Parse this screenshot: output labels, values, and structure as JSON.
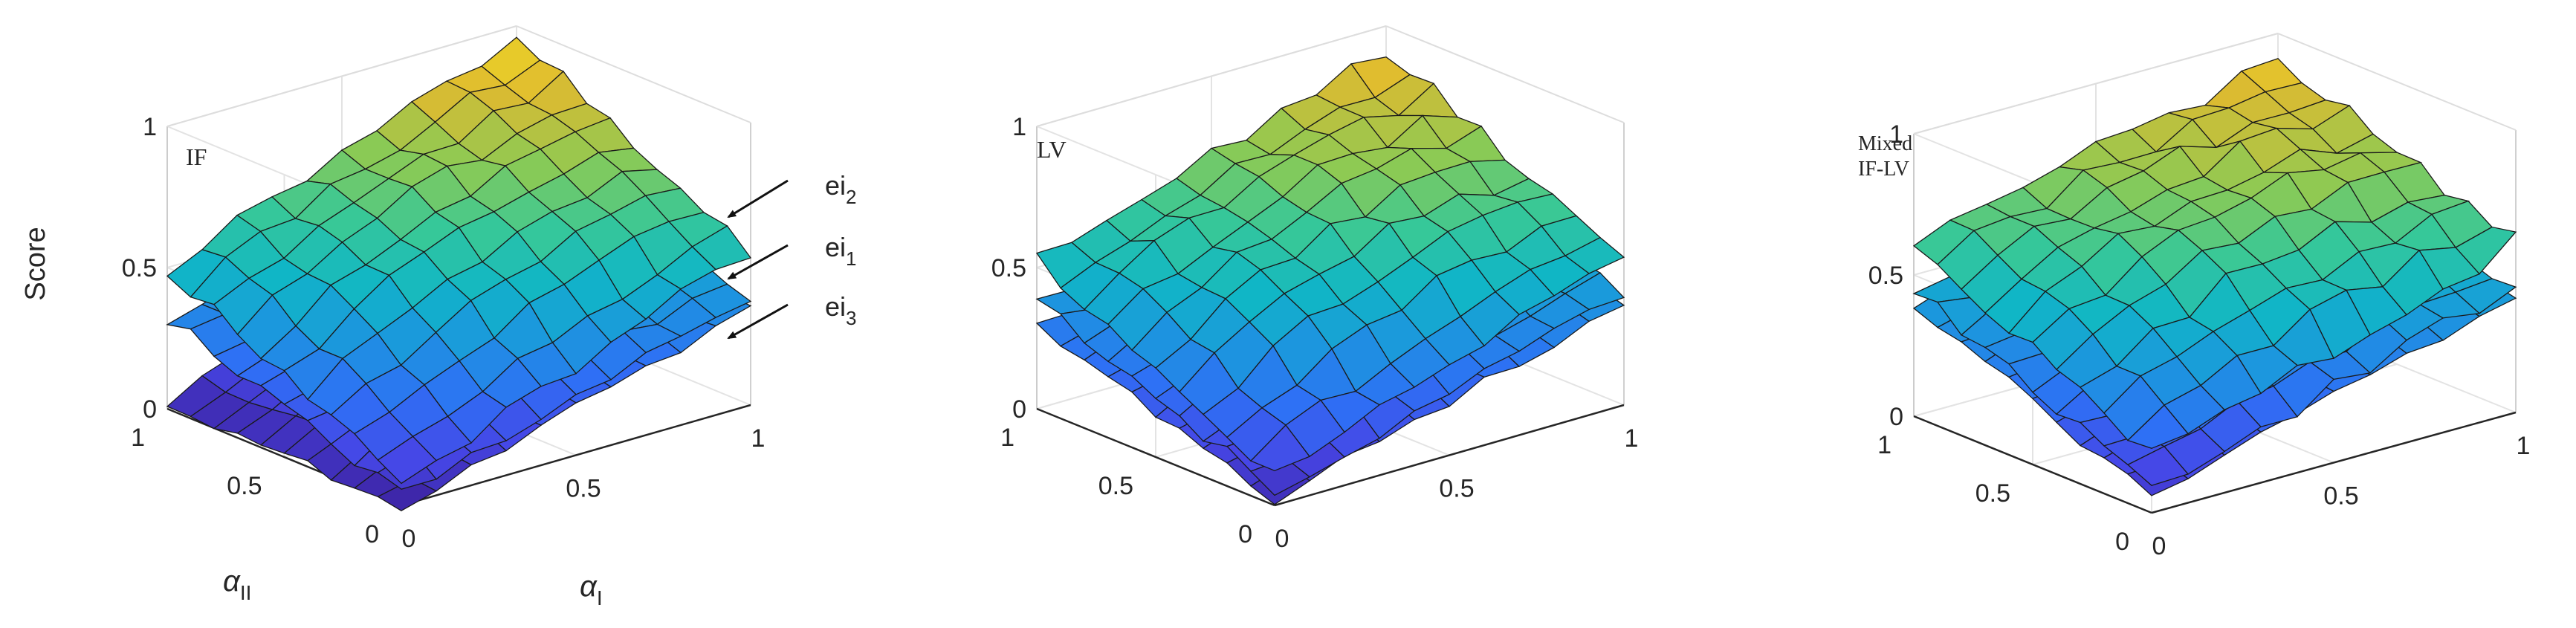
{
  "chart_data": [
    {
      "type": "surface",
      "label": "IF",
      "zlabel": "Score",
      "xlabel": "α",
      "xlabel_sub": "I",
      "ylabel": "α",
      "ylabel_sub": "II",
      "x_ticks": [
        "0",
        "0.5",
        "1"
      ],
      "y_ticks": [
        "0",
        "0.5",
        "1"
      ],
      "z_ticks": [
        "0",
        "0.5",
        "1"
      ],
      "zlim": [
        0,
        1
      ],
      "grid": "on",
      "surfaces": [
        {
          "name": "ei",
          "sub": "2",
          "corners": {
            "origin": 0.08,
            "x1": 0.55,
            "y1": 0.5,
            "far": 0.96
          },
          "peak": 0.1,
          "ripple": 0.03,
          "seed": 1
        },
        {
          "name": "ei",
          "sub": "1",
          "corners": {
            "origin": 0.04,
            "x1": 0.38,
            "y1": 0.32,
            "far": 0.55
          },
          "peak": 0.06,
          "ripple": 0.025,
          "seed": 2
        },
        {
          "name": "ei",
          "sub": "3",
          "corners": {
            "origin": 0.0,
            "x1": 0.34,
            "y1": 0.02,
            "far": 0.48
          },
          "peak": 0.04,
          "ripple": 0.02,
          "seed": 3
        }
      ],
      "annotations": [
        {
          "text": "ei",
          "sub": "2",
          "points_to": "ei2"
        },
        {
          "text": "ei",
          "sub": "1",
          "points_to": "ei1"
        },
        {
          "text": "ei",
          "sub": "3",
          "points_to": "ei3"
        }
      ]
    },
    {
      "type": "surface",
      "label": "LV",
      "x_ticks": [
        "0",
        "0.5",
        "1"
      ],
      "y_ticks": [
        "0",
        "0.5",
        "1"
      ],
      "z_ticks": [
        "0",
        "0.5",
        "1"
      ],
      "zlim": [
        0,
        1
      ],
      "grid": "on",
      "surfaces": [
        {
          "name": "ei",
          "sub": "2",
          "corners": {
            "origin": 0.1,
            "x1": 0.52,
            "y1": 0.52,
            "far": 0.92
          },
          "peak": 0.12,
          "ripple": 0.035,
          "seed": 4
        },
        {
          "name": "ei",
          "sub": "1",
          "corners": {
            "origin": 0.05,
            "x1": 0.4,
            "y1": 0.38,
            "far": 0.6
          },
          "peak": 0.05,
          "ripple": 0.025,
          "seed": 5
        },
        {
          "name": "ei",
          "sub": "3",
          "corners": {
            "origin": 0.02,
            "x1": 0.36,
            "y1": 0.3,
            "far": 0.52
          },
          "peak": 0.04,
          "ripple": 0.02,
          "seed": 6
        }
      ]
    },
    {
      "type": "surface",
      "label": "Mixed\nIF-LV",
      "x_ticks": [
        "0",
        "0.5",
        "1"
      ],
      "y_ticks": [
        "0",
        "0.5",
        "1"
      ],
      "z_ticks": [
        "0",
        "0.5",
        "1"
      ],
      "zlim": [
        0,
        1
      ],
      "grid": "on",
      "surfaces": [
        {
          "name": "ei",
          "sub": "2",
          "corners": {
            "origin": 0.2,
            "x1": 0.6,
            "y1": 0.62,
            "far": 0.9
          },
          "peak": 0.12,
          "ripple": 0.04,
          "seed": 7
        },
        {
          "name": "ei",
          "sub": "1",
          "corners": {
            "origin": 0.08,
            "x1": 0.45,
            "y1": 0.45,
            "far": 0.62
          },
          "peak": 0.05,
          "ripple": 0.03,
          "seed": 8
        },
        {
          "name": "ei",
          "sub": "3",
          "corners": {
            "origin": 0.05,
            "x1": 0.42,
            "y1": 0.4,
            "far": 0.58
          },
          "peak": 0.04,
          "ripple": 0.02,
          "seed": 9
        }
      ]
    }
  ]
}
